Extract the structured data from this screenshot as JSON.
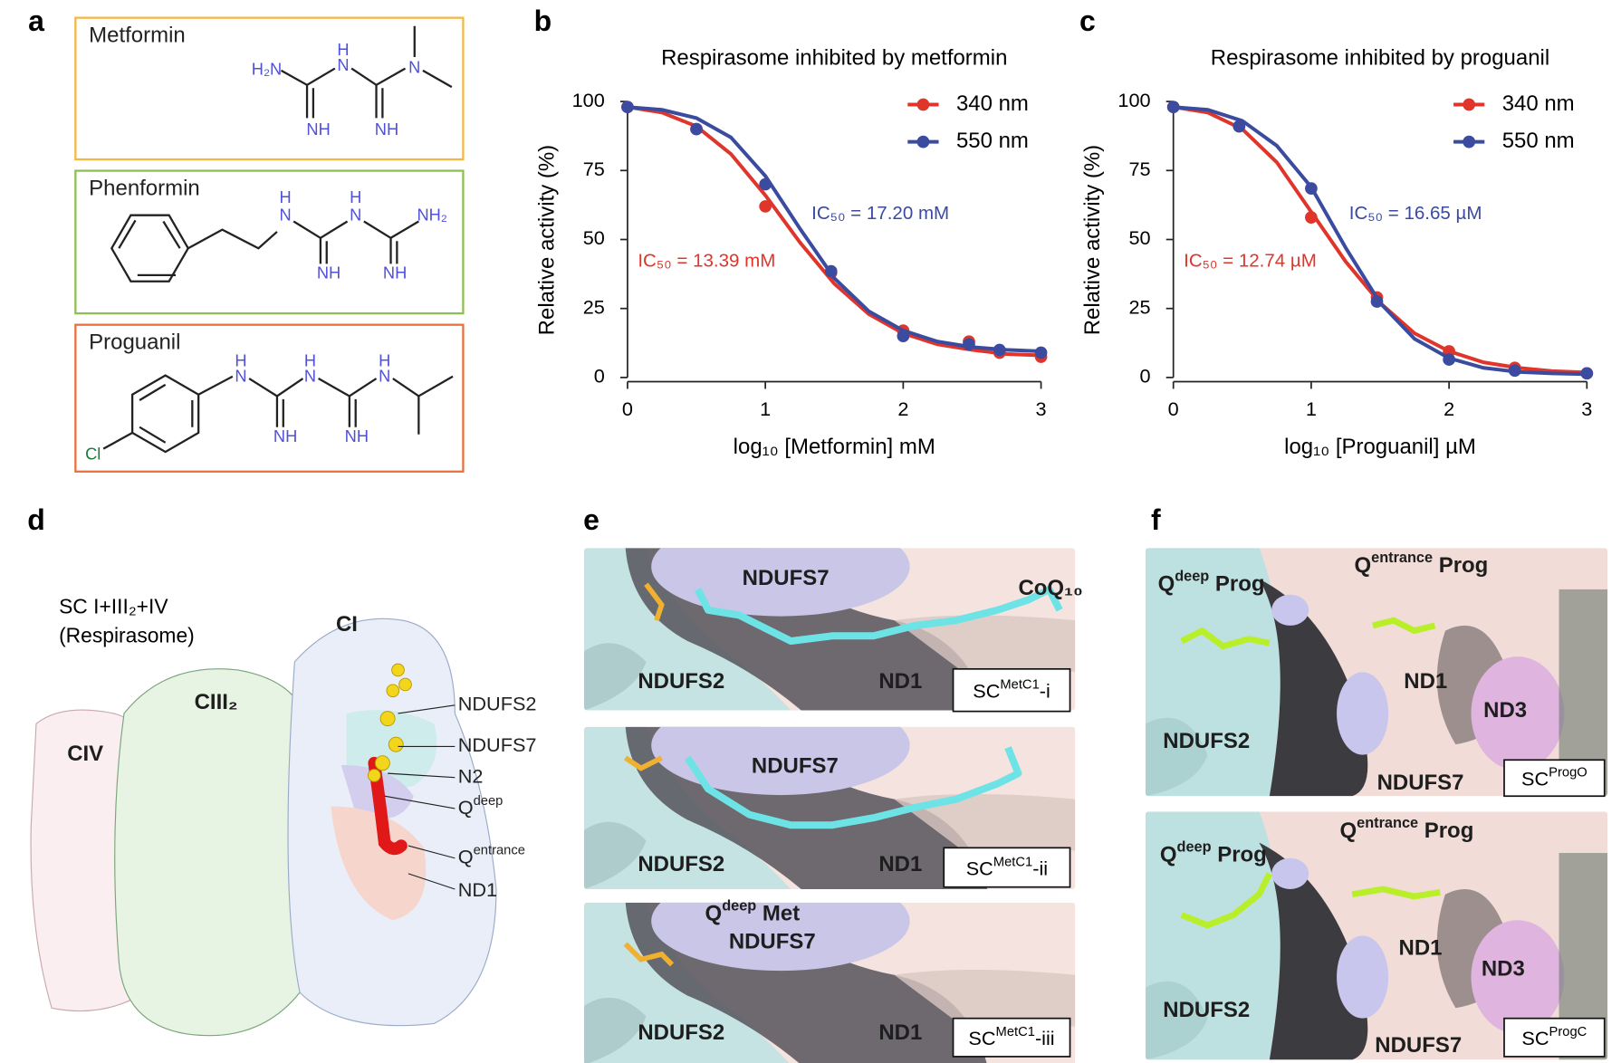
{
  "panel_letters": [
    "a",
    "b",
    "c",
    "d",
    "e",
    "f"
  ],
  "panel_a": {
    "molecules": [
      {
        "name": "Metformin",
        "atoms": [
          "H₂N",
          "H",
          "N",
          "NH",
          "NH",
          "N"
        ]
      },
      {
        "name": "Phenformin",
        "atoms": [
          "H",
          "N",
          "H",
          "N",
          "NH₂",
          "NH",
          "NH"
        ]
      },
      {
        "name": "Proguanil",
        "atoms": [
          "Cl",
          "H",
          "N",
          "NH",
          "H",
          "N",
          "NH",
          "H",
          "N"
        ]
      }
    ]
  },
  "chart_data": [
    {
      "type": "line",
      "title": "Respirasome inhibited by metformin",
      "x_label": "log₁₀ [Metformin] mM",
      "y_label": "Relative activity (%)",
      "xlim": [
        0,
        3
      ],
      "xticks": [
        0,
        1,
        2,
        3
      ],
      "ylim": [
        0,
        100
      ],
      "yticks": [
        0,
        25,
        50,
        75,
        100
      ],
      "series": [
        {
          "name": "340 nm",
          "color": "#e0352b",
          "x": [
            0,
            0.5,
            1,
            1.477,
            2,
            2.477,
            2.699,
            3
          ],
          "values": [
            98,
            90,
            62,
            38,
            17,
            13,
            9,
            7.5
          ],
          "fit": {
            "x": [
              0,
              0.25,
              0.5,
              0.75,
              1,
              1.25,
              1.5,
              1.75,
              2,
              2.25,
              2.5,
              2.75,
              3
            ],
            "values": [
              98,
              96,
              91,
              81,
              66,
              49,
              34,
              23,
              16,
              12,
              10,
              8.5,
              8
            ]
          }
        },
        {
          "name": "550 nm",
          "color": "#3a4ba0",
          "x": [
            0,
            0.5,
            1,
            1.477,
            2,
            2.477,
            2.699,
            3
          ],
          "values": [
            98,
            90,
            70,
            38.5,
            15,
            12,
            10,
            9
          ],
          "fit": {
            "x": [
              0,
              0.25,
              0.5,
              0.75,
              1,
              1.25,
              1.5,
              1.75,
              2,
              2.25,
              2.5,
              2.75,
              3
            ],
            "values": [
              98,
              97,
              94,
              87,
              73,
              54,
              36,
              24,
              17,
              13,
              11,
              10,
              9.5
            ]
          }
        }
      ],
      "annotations": [
        {
          "text": "IC₅₀ = 17.20 mM",
          "color": "#3a4ba0"
        },
        {
          "text": "IC₅₀ = 13.39 mM",
          "color": "#e0352b"
        }
      ]
    },
    {
      "type": "line",
      "title": "Respirasome inhibited by proguanil",
      "x_label": "log₁₀ [Proguanil] µM",
      "y_label": "Relative activity (%)",
      "xlim": [
        0,
        3
      ],
      "xticks": [
        0,
        1,
        2,
        3
      ],
      "ylim": [
        0,
        100
      ],
      "yticks": [
        0,
        25,
        50,
        75,
        100
      ],
      "series": [
        {
          "name": "340 nm",
          "color": "#e0352b",
          "x": [
            0,
            0.477,
            1,
            1.477,
            2,
            2.477,
            3
          ],
          "values": [
            98,
            91,
            58,
            29,
            9.5,
            3.5,
            1.5
          ],
          "fit": {
            "x": [
              0,
              0.25,
              0.5,
              0.75,
              1,
              1.25,
              1.5,
              1.75,
              2,
              2.25,
              2.5,
              2.75,
              3
            ],
            "values": [
              98,
              96,
              90,
              78,
              60,
              42,
              27,
              16,
              9.5,
              5.5,
              3.5,
              2.3,
              1.8
            ]
          }
        },
        {
          "name": "550 nm",
          "color": "#3a4ba0",
          "x": [
            0,
            0.477,
            1,
            1.477,
            2,
            2.477,
            3
          ],
          "values": [
            98,
            91,
            68.5,
            27.5,
            6.5,
            2.5,
            1.5
          ],
          "fit": {
            "x": [
              0,
              0.25,
              0.5,
              0.75,
              1,
              1.25,
              1.5,
              1.75,
              2,
              2.25,
              2.5,
              2.75,
              3
            ],
            "values": [
              98,
              97,
              93,
              84,
              69,
              47,
              27,
              14,
              7,
              3.5,
              2,
              1.5,
              1.2
            ]
          }
        }
      ],
      "annotations": [
        {
          "text": "IC₅₀ = 16.65 µM",
          "color": "#3a4ba0"
        },
        {
          "text": "IC₅₀ = 12.74 µM",
          "color": "#e0352b"
        }
      ]
    }
  ],
  "panel_d": {
    "title": "SC I+III₂+IV",
    "subtitle": "(Respirasome)",
    "complexes": [
      "CI",
      "CIII₂",
      "CIV"
    ],
    "labels": [
      "NDUFS2",
      "NDUFS7",
      "N2",
      {
        "base": "Q",
        "sup": "deep"
      },
      {
        "base": "Q",
        "sup": "entrance"
      },
      "ND1"
    ]
  },
  "panel_e": {
    "panels": [
      {
        "labels": [
          "NDUFS7",
          "NDUFS2",
          "ND1",
          "CoQ₁₀"
        ],
        "tag": {
          "base": "SC",
          "sup": "MetC1",
          "rest": "-i"
        }
      },
      {
        "labels": [
          "NDUFS7",
          "NDUFS2",
          "ND1"
        ],
        "tag": {
          "base": "SC",
          "sup": "MetC1",
          "rest": "-ii"
        }
      },
      {
        "labels": [
          "NDUFS7",
          "NDUFS2",
          "ND1",
          {
            "base": "Q",
            "sup": "deep",
            "rest": " Met"
          }
        ],
        "tag": {
          "base": "SC",
          "sup": "MetC1",
          "rest": "-iii"
        }
      }
    ]
  },
  "panel_f": {
    "panels": [
      {
        "labels": [
          {
            "base": "Q",
            "sup": "deep",
            "rest": " Prog"
          },
          {
            "base": "Q",
            "sup": "entrance",
            "rest": " Prog"
          },
          "ND1",
          "ND3",
          "NDUFS2",
          "NDUFS7"
        ],
        "tag": {
          "base": "SC",
          "sup": "ProgO"
        }
      },
      {
        "labels": [
          {
            "base": "Q",
            "sup": "deep",
            "rest": " Prog"
          },
          {
            "base": "Q",
            "sup": "entrance",
            "rest": " Prog"
          },
          "ND1",
          "ND3",
          "NDUFS2",
          "NDUFS7"
        ],
        "tag": {
          "base": "SC",
          "sup": "ProgC"
        }
      }
    ]
  }
}
